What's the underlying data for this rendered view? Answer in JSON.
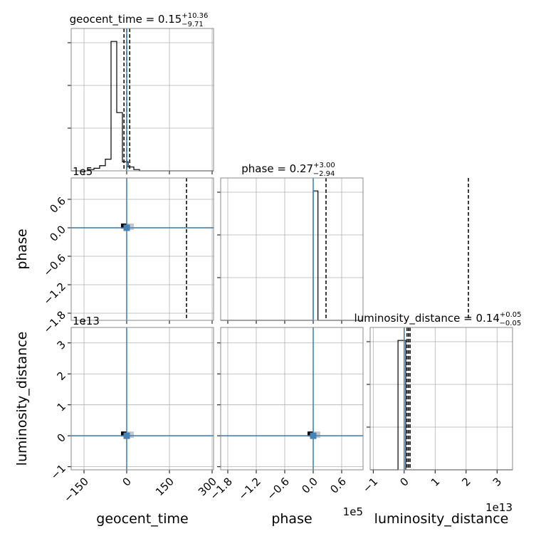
{
  "chart_data": {
    "type": "corner",
    "parameters": [
      "geocent_time",
      "phase",
      "luminosity_distance"
    ],
    "diagonal_titles": [
      {
        "param": "geocent_time",
        "text": "geocent_time = 0.15",
        "sup": "+10.36",
        "sub": "−9.71"
      },
      {
        "param": "phase",
        "text": "phase = 0.27",
        "sup": "+3.00",
        "sub": "−2.94"
      },
      {
        "param": "luminosity_distance",
        "text": "luminosity_distance = 0.14",
        "sup": "+0.05",
        "sub": "−0.05"
      }
    ],
    "axes": {
      "geocent_time": {
        "range": [
          -195,
          305
        ],
        "ticks": [
          -150,
          0,
          150,
          300
        ],
        "tick_labels": [
          "−150",
          "0",
          "150",
          "300"
        ],
        "offset_text": ""
      },
      "phase": {
        "range": [
          -1.95,
          1.05
        ],
        "ticks": [
          -1.8,
          -1.2,
          -0.6,
          0.0,
          0.6
        ],
        "tick_labels": [
          "−1.8",
          "−1.2",
          "−0.6",
          "0.0",
          "0.6"
        ],
        "offset_text": "1e5"
      },
      "luminosity_distance": {
        "range": [
          -1.1,
          3.5
        ],
        "ticks": [
          -1,
          0,
          1,
          2,
          3
        ],
        "tick_labels": [
          "−1",
          "0",
          "1",
          "2",
          "3"
        ],
        "offset_text": "1e13"
      }
    },
    "histograms": {
      "geocent_time": {
        "bin_edges": [
          -195,
          -175,
          -155,
          -135,
          -115,
          -95,
          -75,
          -55,
          -35,
          -15,
          5,
          25,
          45,
          65,
          85,
          105,
          125,
          145,
          165,
          185,
          205,
          225,
          245,
          265,
          285,
          305
        ],
        "counts": [
          0,
          0,
          0,
          0.01,
          0.02,
          0.04,
          0.09,
          1.0,
          0.45,
          0.07,
          0.03,
          0.01,
          0,
          0,
          0,
          0,
          0,
          0,
          0,
          0,
          0,
          0,
          0,
          0,
          0
        ]
      },
      "phase": {
        "bin_edges": [
          -1.95,
          0.0,
          0.1,
          1.05
        ],
        "counts": [
          0,
          1.0,
          0
        ]
      },
      "luminosity_distance": {
        "bin_edges": [
          -1.1,
          -0.2,
          0.05,
          3.5
        ],
        "counts": [
          0,
          1.0,
          0
        ]
      }
    },
    "quantile_lines": {
      "geocent_time": [
        -9.56,
        0.15,
        10.51
      ],
      "phase": [
        -2.67,
        0.27,
        3.27
      ],
      "luminosity_distance": [
        0.09,
        0.14,
        0.19
      ]
    },
    "truths": {
      "geocent_time": 0,
      "phase": 0,
      "luminosity_distance": 0
    },
    "grid": true,
    "colors": {
      "truth": "#4682b4",
      "hist": "#000000",
      "density_dark": "#000000",
      "density_light": "#c8c8c8",
      "grid": "#b0b0b0"
    }
  }
}
